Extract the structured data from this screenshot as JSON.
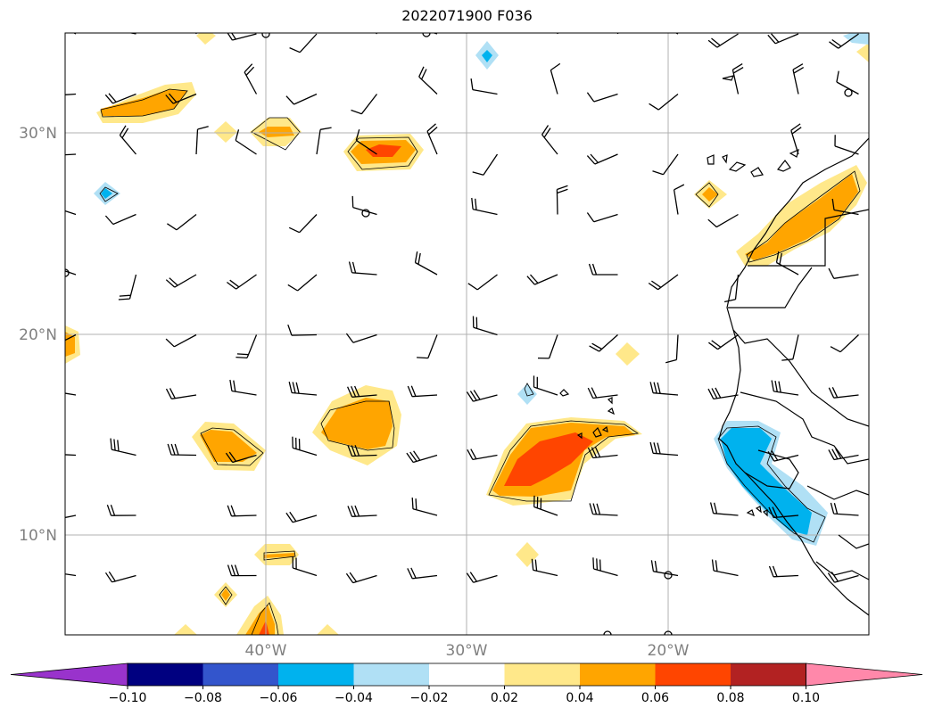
{
  "title": "2022071900 F036",
  "map": {
    "lat_labels": [
      "30°N",
      "20°N",
      "10°N"
    ],
    "lon_labels": [
      "40°W",
      "30°W",
      "20°W"
    ],
    "gridline_color": "#b0b0b0",
    "label_color": "#808080"
  },
  "colorbar": {
    "colors": [
      "#9933cc",
      "#000080",
      "#3355cc",
      "#00b2ee",
      "#b0e0f5",
      "#ffffff",
      "#ffe88a",
      "#ffa500",
      "#ff4500",
      "#b22222",
      "#ff88aa"
    ],
    "tick_labels": [
      "−0.10",
      "−0.08",
      "−0.06",
      "−0.04",
      "−0.02",
      "0.02",
      "0.04",
      "0.06",
      "0.08",
      "0.10"
    ]
  },
  "features": {
    "positive_color_light": "#ffe88a",
    "positive_color_mid": "#ffa500",
    "positive_color_strong": "#ff4500",
    "negative_color_light": "#b0e0f5",
    "negative_color_mid": "#00b2ee"
  }
}
